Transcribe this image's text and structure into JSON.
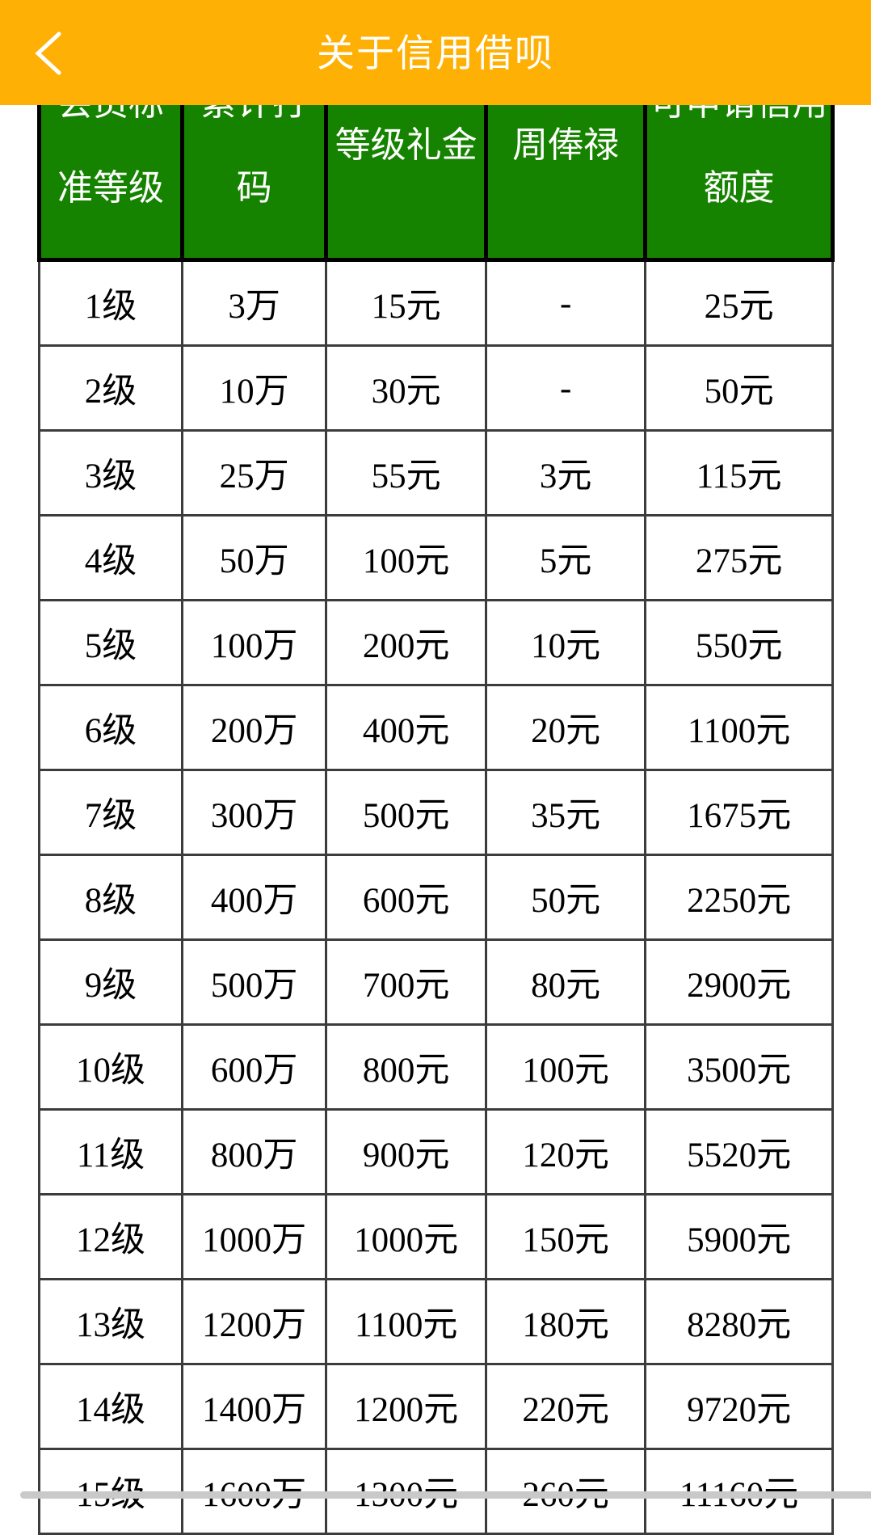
{
  "app_bar": {
    "title": "关于信用借呗",
    "colors": {
      "background": "#FFB005",
      "text": "#FFFFFF"
    }
  },
  "table": {
    "colors": {
      "header_background": "#168300",
      "header_text": "#FFFFFF",
      "header_border": "#000000",
      "body_border": "#3C3C3C",
      "body_text": "#000000"
    },
    "columns": [
      {
        "lines": [
          "会员标",
          "准等级"
        ]
      },
      {
        "lines": [
          "累计打",
          "码"
        ]
      },
      {
        "lines": [
          "等级礼金"
        ]
      },
      {
        "lines": [
          "周俸禄"
        ]
      },
      {
        "lines": [
          "可申请信用",
          "额度"
        ]
      }
    ],
    "rows": [
      [
        "1级",
        "3万",
        "15元",
        "-",
        "25元"
      ],
      [
        "2级",
        "10万",
        "30元",
        "-",
        "50元"
      ],
      [
        "3级",
        "25万",
        "55元",
        "3元",
        "115元"
      ],
      [
        "4级",
        "50万",
        "100元",
        "5元",
        "275元"
      ],
      [
        "5级",
        "100万",
        "200元",
        "10元",
        "550元"
      ],
      [
        "6级",
        "200万",
        "400元",
        "20元",
        "1100元"
      ],
      [
        "7级",
        "300万",
        "500元",
        "35元",
        "1675元"
      ],
      [
        "8级",
        "400万",
        "600元",
        "50元",
        "2250元"
      ],
      [
        "9级",
        "500万",
        "700元",
        "80元",
        "2900元"
      ],
      [
        "10级",
        "600万",
        "800元",
        "100元",
        "3500元"
      ],
      [
        "11级",
        "800万",
        "900元",
        "120元",
        "5520元"
      ],
      [
        "12级",
        "1000万",
        "1000元",
        "150元",
        "5900元"
      ],
      [
        "13级",
        "1200万",
        "1100元",
        "180元",
        "8280元"
      ],
      [
        "14级",
        "1400万",
        "1200元",
        "220元",
        "9720元"
      ],
      [
        "15级",
        "1600万",
        "1300元",
        "260元",
        "11160元"
      ]
    ]
  },
  "scrollbar": {
    "color": "#C9C9C9"
  }
}
